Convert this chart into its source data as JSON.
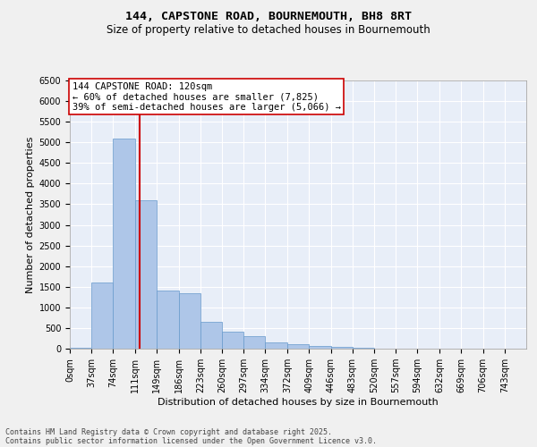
{
  "title_line1": "144, CAPSTONE ROAD, BOURNEMOUTH, BH8 8RT",
  "title_line2": "Size of property relative to detached houses in Bournemouth",
  "xlabel": "Distribution of detached houses by size in Bournemouth",
  "ylabel": "Number of detached properties",
  "bin_labels": [
    "0sqm",
    "37sqm",
    "74sqm",
    "111sqm",
    "149sqm",
    "186sqm",
    "223sqm",
    "260sqm",
    "297sqm",
    "334sqm",
    "372sqm",
    "409sqm",
    "446sqm",
    "483sqm",
    "520sqm",
    "557sqm",
    "594sqm",
    "632sqm",
    "669sqm",
    "706sqm",
    "743sqm"
  ],
  "bin_edges": [
    0,
    37,
    74,
    111,
    149,
    186,
    223,
    260,
    297,
    334,
    372,
    409,
    446,
    483,
    520,
    557,
    594,
    632,
    669,
    706,
    743
  ],
  "bar_values": [
    20,
    1600,
    5100,
    3600,
    1400,
    1350,
    650,
    420,
    300,
    155,
    100,
    70,
    40,
    20,
    10,
    8,
    5,
    3,
    2,
    1
  ],
  "bar_color": "#aec6e8",
  "bar_edge_color": "#6699cc",
  "vline_x": 120,
  "vline_color": "#cc0000",
  "annotation_title": "144 CAPSTONE ROAD: 120sqm",
  "annotation_line1": "← 60% of detached houses are smaller (7,825)",
  "annotation_line2": "39% of semi-detached houses are larger (5,066) →",
  "annotation_box_color": "#ffffff",
  "annotation_box_edge": "#cc0000",
  "ylim": [
    0,
    6500
  ],
  "yticks": [
    0,
    500,
    1000,
    1500,
    2000,
    2500,
    3000,
    3500,
    4000,
    4500,
    5000,
    5500,
    6000,
    6500
  ],
  "background_color": "#e8eef8",
  "grid_color": "#ffffff",
  "fig_background": "#f0f0f0",
  "footer_line1": "Contains HM Land Registry data © Crown copyright and database right 2025.",
  "footer_line2": "Contains public sector information licensed under the Open Government Licence v3.0.",
  "title_fontsize": 9.5,
  "subtitle_fontsize": 8.5,
  "axis_label_fontsize": 8,
  "tick_fontsize": 7,
  "footer_fontsize": 6,
  "annotation_fontsize": 7.5
}
